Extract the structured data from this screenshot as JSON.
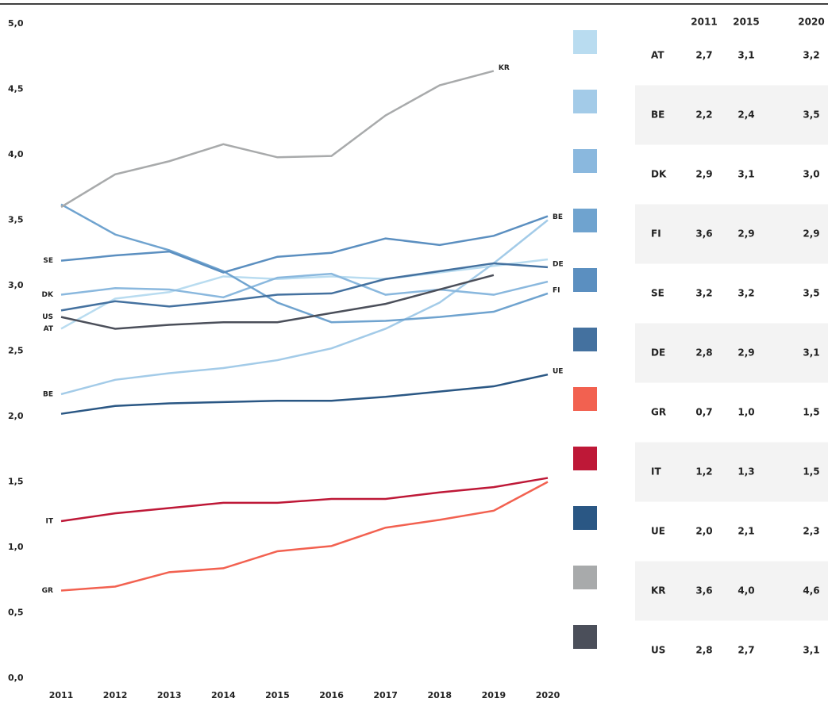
{
  "chart_data": {
    "type": "line",
    "x": [
      2011,
      2012,
      2013,
      2014,
      2015,
      2016,
      2017,
      2018,
      2019,
      2020
    ],
    "xlim": [
      2011,
      2020
    ],
    "ylim": [
      0,
      5
    ],
    "yticks": [
      {
        "value": 0,
        "label": "0,0"
      },
      {
        "value": 0.5,
        "label": "0,5"
      },
      {
        "value": 1,
        "label": "1,0"
      },
      {
        "value": 1.5,
        "label": "1,5"
      },
      {
        "value": 2,
        "label": "2,0"
      },
      {
        "value": 2.5,
        "label": "2,5"
      },
      {
        "value": 3,
        "label": "3,0"
      },
      {
        "value": 3.5,
        "label": "3,5"
      },
      {
        "value": 4,
        "label": "4,0"
      },
      {
        "value": 4.5,
        "label": "4,5"
      },
      {
        "value": 5,
        "label": "5,0"
      }
    ],
    "series": [
      {
        "name": "AT",
        "color": "#b9dcf0",
        "start_label": true,
        "end_label": false,
        "values": [
          2.67,
          2.9,
          2.95,
          3.07,
          3.05,
          3.07,
          3.05,
          3.1,
          3.15,
          3.2
        ]
      },
      {
        "name": "BE",
        "color": "#a3cbe8",
        "start_label": true,
        "end_label": true,
        "values": [
          2.17,
          2.28,
          2.33,
          2.37,
          2.43,
          2.52,
          2.67,
          2.87,
          3.17,
          3.5
        ]
      },
      {
        "name": "DK",
        "color": "#8ab8de",
        "start_label": true,
        "end_label": false,
        "values": [
          2.93,
          2.98,
          2.97,
          2.91,
          3.06,
          3.09,
          2.93,
          2.97,
          2.93,
          3.03
        ]
      },
      {
        "name": "FI",
        "color": "#6fa3cf",
        "start_label": false,
        "end_label": true,
        "values": [
          3.62,
          3.39,
          3.27,
          3.11,
          2.87,
          2.72,
          2.73,
          2.76,
          2.8,
          2.94
        ]
      },
      {
        "name": "SE",
        "color": "#5b8fc0",
        "start_label": true,
        "end_label": false,
        "values": [
          3.19,
          3.23,
          3.26,
          3.1,
          3.22,
          3.25,
          3.36,
          3.31,
          3.38,
          3.53
        ]
      },
      {
        "name": "DE",
        "color": "#44719f",
        "start_label": false,
        "end_label": true,
        "values": [
          2.81,
          2.88,
          2.84,
          2.88,
          2.93,
          2.94,
          3.05,
          3.11,
          3.17,
          3.14
        ]
      },
      {
        "name": "GR",
        "color": "#f26150",
        "start_label": true,
        "end_label": false,
        "values": [
          0.67,
          0.7,
          0.81,
          0.84,
          0.97,
          1.01,
          1.15,
          1.21,
          1.28,
          1.5
        ]
      },
      {
        "name": "IT",
        "color": "#be1837",
        "start_label": true,
        "end_label": false,
        "values": [
          1.2,
          1.26,
          1.3,
          1.34,
          1.34,
          1.37,
          1.37,
          1.42,
          1.46,
          1.53
        ]
      },
      {
        "name": "UE",
        "color": "#2a5784",
        "start_label": false,
        "end_label": true,
        "values": [
          2.02,
          2.08,
          2.1,
          2.11,
          2.12,
          2.12,
          2.15,
          2.19,
          2.23,
          2.32
        ]
      },
      {
        "name": "KR",
        "color": "#a8aaab",
        "start_label": false,
        "end_label": true,
        "values": [
          3.6,
          3.85,
          3.95,
          4.08,
          3.98,
          3.99,
          4.3,
          4.53,
          4.64,
          null
        ]
      },
      {
        "name": "US",
        "color": "#4b4f5a",
        "start_label": true,
        "end_label": false,
        "values": [
          2.76,
          2.67,
          2.7,
          2.72,
          2.72,
          2.79,
          2.86,
          2.97,
          3.08,
          null
        ]
      }
    ]
  },
  "table": {
    "columns": [
      "2011",
      "2015",
      "2020"
    ],
    "rows": [
      [
        "2,7",
        "3,1",
        "3,2"
      ],
      [
        "2,2",
        "2,4",
        "3,5"
      ],
      [
        "2,9",
        "3,1",
        "3,0"
      ],
      [
        "3,6",
        "2,9",
        "2,9"
      ],
      [
        "3,2",
        "3,2",
        "3,5"
      ],
      [
        "2,8",
        "2,9",
        "3,1"
      ],
      [
        "0,7",
        "1,0",
        "1,5"
      ],
      [
        "1,2",
        "1,3",
        "1,5"
      ],
      [
        "2,0",
        "2,1",
        "2,3"
      ],
      [
        "3,6",
        "4,0",
        "4,6"
      ],
      [
        "2,8",
        "2,7",
        "3,1"
      ]
    ]
  }
}
